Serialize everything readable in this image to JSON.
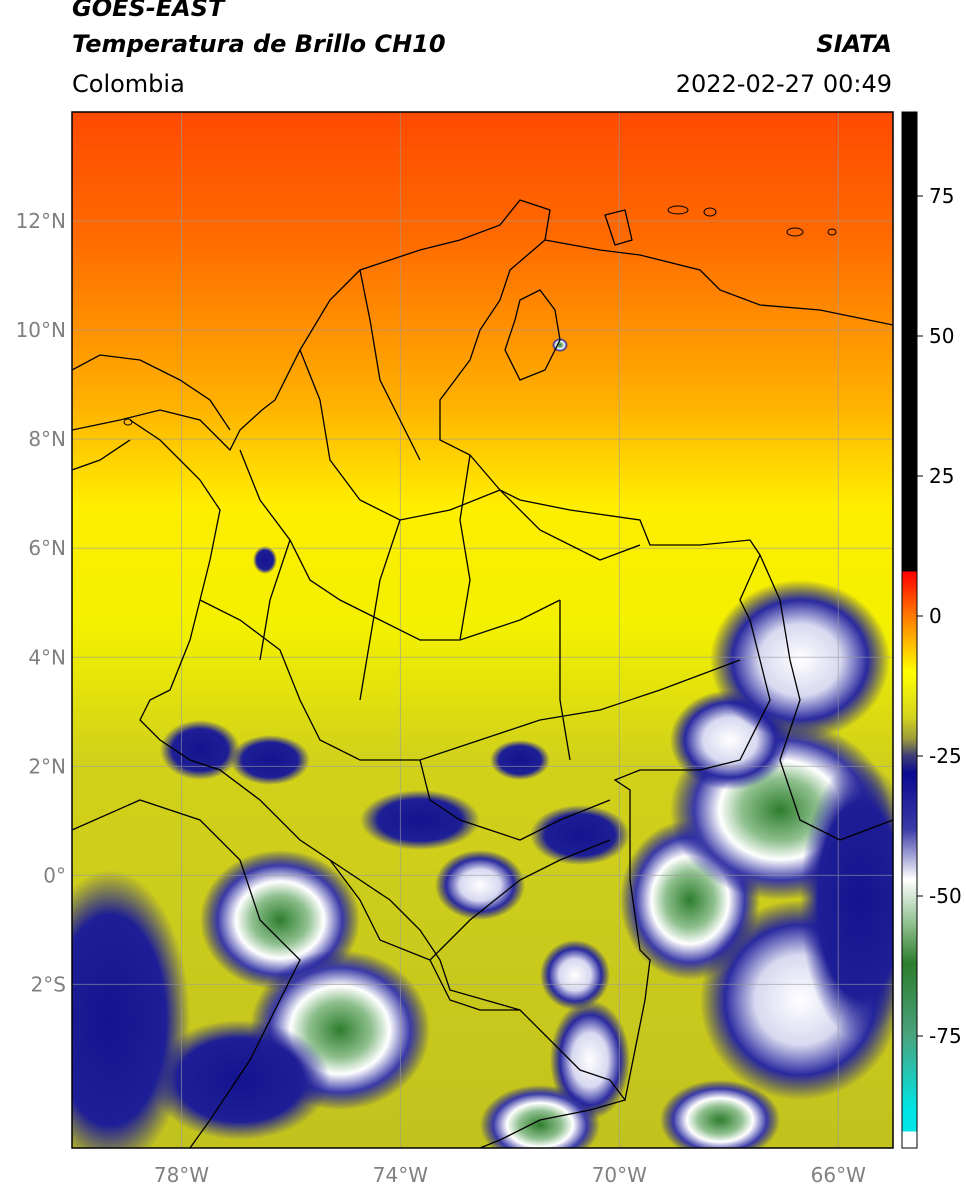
{
  "header": {
    "title_main": "GOES-EAST",
    "title_sub": "Temperatura de Brillo CH10",
    "region": "Colombia",
    "org": "SIATA",
    "timestamp": "2022-02-27 00:49"
  },
  "map": {
    "lon_range": [
      -80,
      -65
    ],
    "lat_range": [
      -5,
      14
    ],
    "lon_ticks": [
      {
        "value": -78,
        "label": "78°W"
      },
      {
        "value": -74,
        "label": "74°W"
      },
      {
        "value": -70,
        "label": "70°W"
      },
      {
        "value": -66,
        "label": "66°W"
      }
    ],
    "lat_ticks": [
      {
        "value": 12,
        "label": "12°N"
      },
      {
        "value": 10,
        "label": "10°N"
      },
      {
        "value": 8,
        "label": "8°N"
      },
      {
        "value": 6,
        "label": "6°N"
      },
      {
        "value": 4,
        "label": "4°N"
      },
      {
        "value": 2,
        "label": "2°N"
      },
      {
        "value": 0,
        "label": "0°"
      },
      {
        "value": -2,
        "label": "2°S"
      }
    ]
  },
  "colorbar": {
    "range": [
      -95,
      90
    ],
    "ticks": [
      {
        "value": 75,
        "label": "75"
      },
      {
        "value": 50,
        "label": "50"
      },
      {
        "value": 25,
        "label": "25"
      },
      {
        "value": 0,
        "label": "0"
      },
      {
        "value": -25,
        "label": "-25"
      },
      {
        "value": -50,
        "label": "-50"
      },
      {
        "value": -75,
        "label": "-75"
      }
    ],
    "stops": [
      {
        "value": 90,
        "color": "#000000"
      },
      {
        "value": 8,
        "color": "#000000"
      },
      {
        "value": 7.9,
        "color": "#ff0000"
      },
      {
        "value": 0,
        "color": "#ff7a00"
      },
      {
        "value": -10,
        "color": "#ffff00"
      },
      {
        "value": -18,
        "color": "#d4d41e"
      },
      {
        "value": -22,
        "color": "#9a9a3c"
      },
      {
        "value": -25,
        "color": "#3c3c78"
      },
      {
        "value": -28,
        "color": "#0a0a90"
      },
      {
        "value": -38,
        "color": "#3a3aa8"
      },
      {
        "value": -47,
        "color": "#ffffff"
      },
      {
        "value": -55,
        "color": "#8fc08f"
      },
      {
        "value": -62,
        "color": "#2d7d2d"
      },
      {
        "value": -75,
        "color": "#4aa47f"
      },
      {
        "value": -88,
        "color": "#00e5e5"
      },
      {
        "value": -92,
        "color": "#00e5e5"
      },
      {
        "value": -92.1,
        "color": "#ffffff"
      },
      {
        "value": -95,
        "color": "#ffffff"
      }
    ]
  }
}
